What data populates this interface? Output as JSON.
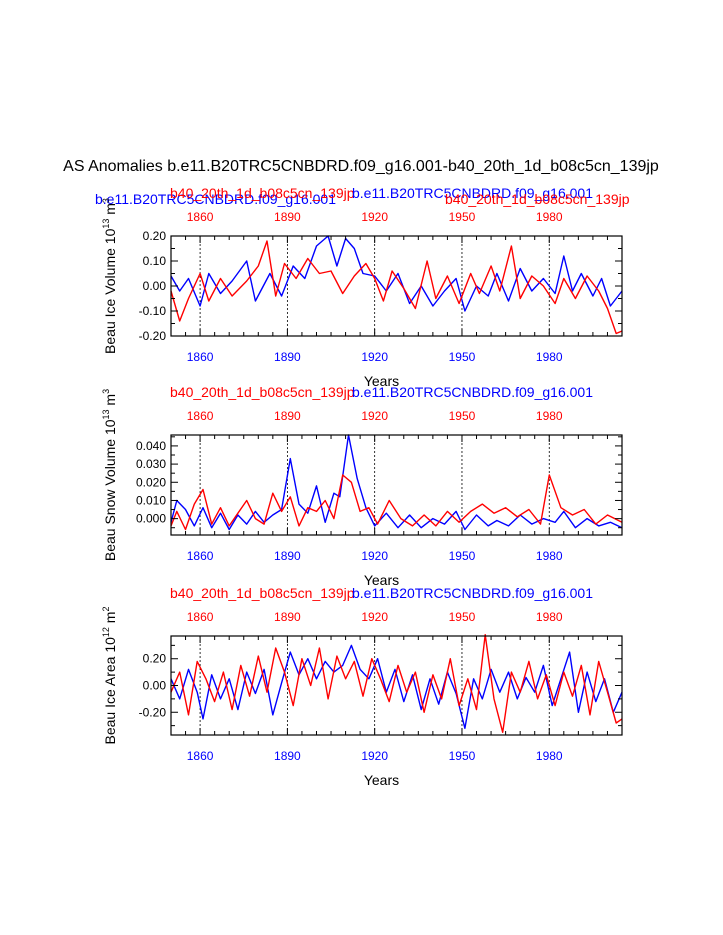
{
  "title": "AS Anomalies b.e11.B20TRC5CNBDRD.f09_g16.001-b40_20th_1d_b08c5cn_139jp",
  "colors": {
    "blue": "#0000ff",
    "red": "#ff0000",
    "black": "#000000"
  },
  "series_names": {
    "blue": "b.e11.B20TRC5CNBDRD.f09_g16.001",
    "red": "b40_20th_1d_b08c5cn_139jp"
  },
  "x_range": [
    1850,
    2005
  ],
  "top_axis_years": [
    1860,
    1890,
    1920,
    1950,
    1980
  ],
  "bottom_axis_years": [
    1860,
    1890,
    1920,
    1950,
    1980
  ],
  "panels": [
    {
      "id": "ice-volume",
      "ylabel_main": "Beau Ice Volume 10",
      "ylabel_exp": "13",
      "ylabel_tail": " m",
      "ylabel_unit_exp": "3",
      "xlabel": "Years",
      "ylim": [
        -0.2,
        0.2
      ],
      "yticks": [
        -0.2,
        -0.1,
        0.0,
        0.1,
        0.2
      ],
      "ytick_labels": [
        "-0.20",
        "-0.10",
        "0.00",
        "0.10",
        "0.20"
      ],
      "header": [
        {
          "text": "b.e11.B20TRC5CNBDRD.f09_g16.001",
          "color": "blue"
        },
        {
          "text": "b40_20th_1d_b08c5cn_139jp",
          "color": "red"
        },
        {
          "text": "b.e11.B20TRC5CNBDRD.f09_g16.001",
          "color": "blue"
        },
        {
          "text": "b40_20th_1d_b08c5cn_139jp",
          "color": "red"
        }
      ],
      "blue_points": [
        [
          1850,
          0.04
        ],
        [
          1853,
          -0.02
        ],
        [
          1856,
          0.03
        ],
        [
          1860,
          -0.08
        ],
        [
          1863,
          0.05
        ],
        [
          1867,
          -0.03
        ],
        [
          1871,
          0.02
        ],
        [
          1876,
          0.1
        ],
        [
          1879,
          -0.06
        ],
        [
          1884,
          0.05
        ],
        [
          1888,
          -0.04
        ],
        [
          1892,
          0.08
        ],
        [
          1896,
          0.03
        ],
        [
          1900,
          0.16
        ],
        [
          1904,
          0.2
        ],
        [
          1907,
          0.08
        ],
        [
          1910,
          0.19
        ],
        [
          1913,
          0.15
        ],
        [
          1916,
          0.05
        ],
        [
          1920,
          0.04
        ],
        [
          1924,
          -0.02
        ],
        [
          1928,
          0.05
        ],
        [
          1932,
          -0.07
        ],
        [
          1936,
          0.0
        ],
        [
          1940,
          -0.08
        ],
        [
          1944,
          -0.02
        ],
        [
          1948,
          0.03
        ],
        [
          1951,
          -0.1
        ],
        [
          1955,
          0.0
        ],
        [
          1959,
          -0.04
        ],
        [
          1962,
          0.05
        ],
        [
          1966,
          -0.06
        ],
        [
          1970,
          0.07
        ],
        [
          1974,
          -0.02
        ],
        [
          1978,
          0.03
        ],
        [
          1982,
          -0.03
        ],
        [
          1985,
          0.12
        ],
        [
          1988,
          -0.02
        ],
        [
          1991,
          0.05
        ],
        [
          1995,
          -0.04
        ],
        [
          1998,
          0.03
        ],
        [
          2001,
          -0.08
        ],
        [
          2005,
          -0.02
        ]
      ],
      "red_points": [
        [
          1850,
          -0.02
        ],
        [
          1853,
          -0.14
        ],
        [
          1856,
          -0.05
        ],
        [
          1860,
          0.05
        ],
        [
          1863,
          -0.06
        ],
        [
          1867,
          0.03
        ],
        [
          1871,
          -0.04
        ],
        [
          1876,
          0.02
        ],
        [
          1880,
          0.08
        ],
        [
          1883,
          0.18
        ],
        [
          1886,
          -0.04
        ],
        [
          1889,
          0.09
        ],
        [
          1893,
          0.03
        ],
        [
          1897,
          0.11
        ],
        [
          1901,
          0.05
        ],
        [
          1905,
          0.06
        ],
        [
          1909,
          -0.03
        ],
        [
          1913,
          0.04
        ],
        [
          1917,
          0.09
        ],
        [
          1920,
          0.03
        ],
        [
          1923,
          -0.06
        ],
        [
          1926,
          0.06
        ],
        [
          1930,
          -0.01
        ],
        [
          1934,
          -0.09
        ],
        [
          1938,
          0.1
        ],
        [
          1941,
          -0.05
        ],
        [
          1945,
          0.04
        ],
        [
          1949,
          -0.07
        ],
        [
          1953,
          0.05
        ],
        [
          1956,
          -0.03
        ],
        [
          1960,
          0.08
        ],
        [
          1963,
          -0.02
        ],
        [
          1967,
          0.16
        ],
        [
          1970,
          -0.05
        ],
        [
          1974,
          0.04
        ],
        [
          1978,
          0.0
        ],
        [
          1982,
          -0.07
        ],
        [
          1985,
          0.03
        ],
        [
          1989,
          -0.05
        ],
        [
          1993,
          0.04
        ],
        [
          1997,
          -0.02
        ],
        [
          2000,
          -0.09
        ],
        [
          2003,
          -0.19
        ],
        [
          2005,
          -0.18
        ]
      ]
    },
    {
      "id": "snow-volume",
      "ylabel_main": "Beau Snow Volume 10",
      "ylabel_exp": "13",
      "ylabel_tail": " m",
      "ylabel_unit_exp": "3",
      "xlabel": "Years",
      "ylim": [
        -0.009,
        0.046
      ],
      "yticks": [
        0.0,
        0.01,
        0.02,
        0.03,
        0.04
      ],
      "ytick_labels": [
        "0.000",
        "0.010",
        "0.020",
        "0.030",
        "0.040"
      ],
      "header": [
        {
          "text": "b40_20th_1d_b08c5cn_139jp",
          "color": "red"
        },
        {
          "text": "b.e11.B20TRC5CNBDRD.f09_g16.001",
          "color": "blue"
        }
      ],
      "blue_points": [
        [
          1850,
          -0.002
        ],
        [
          1852,
          0.01
        ],
        [
          1855,
          0.005
        ],
        [
          1858,
          -0.004
        ],
        [
          1861,
          0.006
        ],
        [
          1864,
          -0.005
        ],
        [
          1867,
          0.003
        ],
        [
          1870,
          -0.006
        ],
        [
          1873,
          0.002
        ],
        [
          1876,
          -0.003
        ],
        [
          1879,
          0.004
        ],
        [
          1882,
          -0.002
        ],
        [
          1885,
          0.002
        ],
        [
          1888,
          0.005
        ],
        [
          1891,
          0.033
        ],
        [
          1894,
          0.008
        ],
        [
          1897,
          0.003
        ],
        [
          1900,
          0.018
        ],
        [
          1903,
          -0.002
        ],
        [
          1906,
          0.014
        ],
        [
          1908,
          0.012
        ],
        [
          1911,
          0.046
        ],
        [
          1914,
          0.022
        ],
        [
          1917,
          0.006
        ],
        [
          1920,
          -0.004
        ],
        [
          1924,
          0.003
        ],
        [
          1928,
          -0.005
        ],
        [
          1932,
          0.002
        ],
        [
          1936,
          -0.005
        ],
        [
          1940,
          0.0
        ],
        [
          1944,
          -0.003
        ],
        [
          1948,
          0.004
        ],
        [
          1951,
          -0.006
        ],
        [
          1955,
          0.002
        ],
        [
          1959,
          -0.004
        ],
        [
          1962,
          -0.001
        ],
        [
          1966,
          -0.004
        ],
        [
          1970,
          0.002
        ],
        [
          1974,
          -0.003
        ],
        [
          1978,
          0.0
        ],
        [
          1982,
          -0.002
        ],
        [
          1985,
          0.004
        ],
        [
          1989,
          -0.005
        ],
        [
          1993,
          0.0
        ],
        [
          1997,
          -0.004
        ],
        [
          2001,
          -0.002
        ],
        [
          2005,
          -0.005
        ]
      ],
      "red_points": [
        [
          1850,
          -0.004
        ],
        [
          1852,
          0.004
        ],
        [
          1855,
          -0.006
        ],
        [
          1858,
          0.008
        ],
        [
          1861,
          0.016
        ],
        [
          1864,
          -0.003
        ],
        [
          1867,
          0.006
        ],
        [
          1870,
          -0.004
        ],
        [
          1873,
          0.003
        ],
        [
          1876,
          0.01
        ],
        [
          1879,
          0.0
        ],
        [
          1882,
          -0.003
        ],
        [
          1885,
          0.014
        ],
        [
          1888,
          0.004
        ],
        [
          1891,
          0.012
        ],
        [
          1894,
          -0.004
        ],
        [
          1897,
          0.006
        ],
        [
          1900,
          0.004
        ],
        [
          1903,
          0.01
        ],
        [
          1906,
          0.0
        ],
        [
          1909,
          0.024
        ],
        [
          1912,
          0.02
        ],
        [
          1915,
          0.004
        ],
        [
          1918,
          0.006
        ],
        [
          1921,
          -0.003
        ],
        [
          1925,
          0.01
        ],
        [
          1929,
          0.0
        ],
        [
          1933,
          -0.004
        ],
        [
          1937,
          0.002
        ],
        [
          1941,
          -0.004
        ],
        [
          1945,
          0.004
        ],
        [
          1949,
          -0.002
        ],
        [
          1953,
          0.004
        ],
        [
          1957,
          0.008
        ],
        [
          1961,
          0.003
        ],
        [
          1965,
          0.006
        ],
        [
          1969,
          0.001
        ],
        [
          1973,
          0.005
        ],
        [
          1977,
          -0.003
        ],
        [
          1980,
          0.024
        ],
        [
          1984,
          0.006
        ],
        [
          1988,
          0.002
        ],
        [
          1992,
          0.005
        ],
        [
          1996,
          -0.003
        ],
        [
          2000,
          0.002
        ],
        [
          2005,
          -0.002
        ]
      ]
    },
    {
      "id": "ice-area",
      "ylabel_main": "Beau Ice Area 10",
      "ylabel_exp": "12",
      "ylabel_tail": " m",
      "ylabel_unit_exp": "2",
      "xlabel": "Years",
      "ylim": [
        -0.37,
        0.37
      ],
      "yticks": [
        -0.2,
        0.0,
        0.2
      ],
      "ytick_labels": [
        "-0.20",
        "0.00",
        "0.20"
      ],
      "header": [
        {
          "text": "b40_20th_1d_b08c5cn_139jp",
          "color": "red"
        },
        {
          "text": "b.e11.B20TRC5CNBDRD.f09_g16.001",
          "color": "blue"
        }
      ],
      "blue_points": [
        [
          1850,
          0.05
        ],
        [
          1853,
          -0.1
        ],
        [
          1856,
          0.12
        ],
        [
          1859,
          -0.05
        ],
        [
          1861,
          -0.25
        ],
        [
          1864,
          0.08
        ],
        [
          1867,
          -0.1
        ],
        [
          1870,
          0.05
        ],
        [
          1873,
          -0.18
        ],
        [
          1876,
          0.1
        ],
        [
          1879,
          -0.06
        ],
        [
          1882,
          0.12
        ],
        [
          1885,
          -0.22
        ],
        [
          1888,
          0.02
        ],
        [
          1891,
          0.25
        ],
        [
          1894,
          0.08
        ],
        [
          1897,
          0.2
        ],
        [
          1900,
          0.05
        ],
        [
          1903,
          0.18
        ],
        [
          1906,
          0.1
        ],
        [
          1909,
          0.15
        ],
        [
          1912,
          0.3
        ],
        [
          1915,
          0.12
        ],
        [
          1918,
          0.05
        ],
        [
          1921,
          0.2
        ],
        [
          1924,
          -0.05
        ],
        [
          1927,
          0.12
        ],
        [
          1930,
          -0.12
        ],
        [
          1933,
          0.08
        ],
        [
          1936,
          -0.18
        ],
        [
          1939,
          0.05
        ],
        [
          1942,
          -0.14
        ],
        [
          1945,
          0.1
        ],
        [
          1948,
          -0.06
        ],
        [
          1951,
          -0.32
        ],
        [
          1954,
          0.05
        ],
        [
          1957,
          -0.1
        ],
        [
          1960,
          0.12
        ],
        [
          1963,
          -0.05
        ],
        [
          1966,
          0.1
        ],
        [
          1969,
          -0.1
        ],
        [
          1972,
          0.06
        ],
        [
          1975,
          -0.05
        ],
        [
          1978,
          0.15
        ],
        [
          1981,
          -0.15
        ],
        [
          1984,
          0.05
        ],
        [
          1987,
          0.25
        ],
        [
          1990,
          -0.2
        ],
        [
          1993,
          0.1
        ],
        [
          1996,
          -0.12
        ],
        [
          1999,
          0.05
        ],
        [
          2002,
          -0.2
        ],
        [
          2005,
          -0.05
        ]
      ],
      "red_points": [
        [
          1850,
          -0.05
        ],
        [
          1853,
          0.1
        ],
        [
          1856,
          -0.22
        ],
        [
          1859,
          0.18
        ],
        [
          1862,
          0.05
        ],
        [
          1865,
          -0.12
        ],
        [
          1868,
          0.1
        ],
        [
          1871,
          -0.18
        ],
        [
          1874,
          0.15
        ],
        [
          1877,
          -0.08
        ],
        [
          1880,
          0.22
        ],
        [
          1883,
          -0.05
        ],
        [
          1886,
          0.28
        ],
        [
          1889,
          0.1
        ],
        [
          1892,
          -0.15
        ],
        [
          1895,
          0.2
        ],
        [
          1898,
          0.0
        ],
        [
          1901,
          0.28
        ],
        [
          1904,
          -0.1
        ],
        [
          1907,
          0.22
        ],
        [
          1910,
          0.05
        ],
        [
          1913,
          0.18
        ],
        [
          1916,
          -0.08
        ],
        [
          1919,
          0.2
        ],
        [
          1922,
          0.05
        ],
        [
          1925,
          -0.12
        ],
        [
          1928,
          0.15
        ],
        [
          1931,
          -0.05
        ],
        [
          1934,
          0.1
        ],
        [
          1937,
          -0.2
        ],
        [
          1940,
          0.08
        ],
        [
          1943,
          -0.1
        ],
        [
          1946,
          0.2
        ],
        [
          1949,
          -0.15
        ],
        [
          1952,
          0.05
        ],
        [
          1955,
          -0.18
        ],
        [
          1958,
          0.38
        ],
        [
          1961,
          -0.1
        ],
        [
          1964,
          -0.35
        ],
        [
          1967,
          0.1
        ],
        [
          1970,
          -0.05
        ],
        [
          1973,
          0.18
        ],
        [
          1976,
          -0.1
        ],
        [
          1979,
          0.08
        ],
        [
          1982,
          -0.15
        ],
        [
          1985,
          0.1
        ],
        [
          1988,
          -0.08
        ],
        [
          1991,
          0.15
        ],
        [
          1994,
          -0.22
        ],
        [
          1997,
          0.18
        ],
        [
          2000,
          -0.05
        ],
        [
          2003,
          -0.28
        ],
        [
          2005,
          -0.25
        ]
      ]
    }
  ],
  "chart_data": [
    {
      "type": "line",
      "title": "AS Anomalies b.e11.B20TRC5CNBDRD.f09_g16.001-b40_20th_1d_b08c5cn_139jp",
      "ylabel": "Beau Ice Volume 10^13 m^3",
      "xlabel": "Years",
      "xlim": [
        1850,
        2005
      ],
      "ylim": [
        -0.2,
        0.2
      ],
      "series": [
        {
          "name": "b.e11.B20TRC5CNBDRD.f09_g16.001",
          "color": "blue"
        },
        {
          "name": "b40_20th_1d_b08c5cn_139jp",
          "color": "red"
        }
      ]
    },
    {
      "type": "line",
      "ylabel": "Beau Snow Volume 10^13 m^3",
      "xlabel": "Years",
      "xlim": [
        1850,
        2005
      ],
      "ylim": [
        -0.009,
        0.046
      ],
      "series": [
        {
          "name": "b.e11.B20TRC5CNBDRD.f09_g16.001",
          "color": "blue"
        },
        {
          "name": "b40_20th_1d_b08c5cn_139jp",
          "color": "red"
        }
      ]
    },
    {
      "type": "line",
      "ylabel": "Beau Ice Area 10^12 m^2",
      "xlabel": "Years",
      "xlim": [
        1850,
        2005
      ],
      "ylim": [
        -0.37,
        0.37
      ],
      "series": [
        {
          "name": "b.e11.B20TRC5CNBDRD.f09_g16.001",
          "color": "blue"
        },
        {
          "name": "b40_20th_1d_b08c5cn_139jp",
          "color": "red"
        }
      ]
    }
  ]
}
